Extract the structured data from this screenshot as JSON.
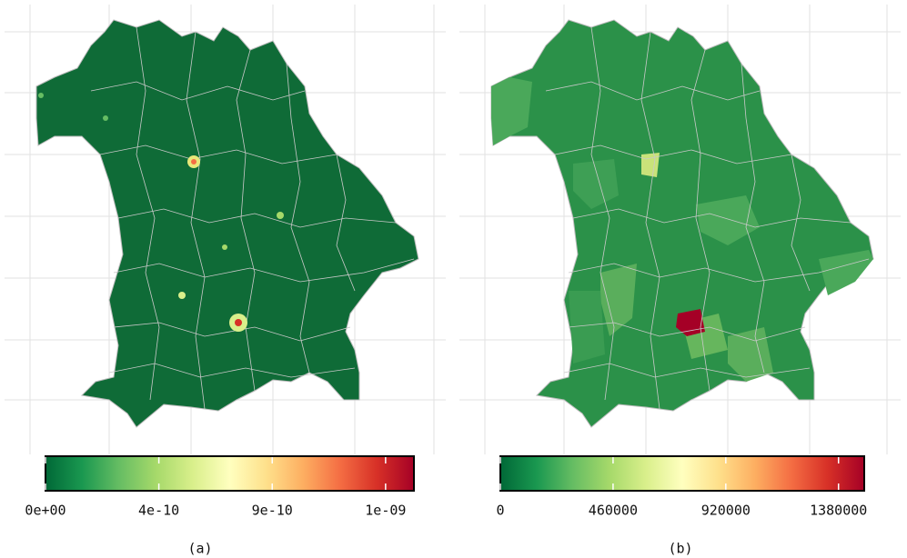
{
  "panels": [
    {
      "caption": "(a)",
      "colorbar": {
        "lim": [
          0,
          1.43e-09
        ],
        "ticks": [
          {
            "value": 0,
            "label": "0e+00"
          },
          {
            "value": 4.4e-10,
            "label": "4e-10"
          },
          {
            "value": 8.8e-10,
            "label": "9e-10"
          },
          {
            "value": 1.32e-09,
            "label": "1e-09"
          }
        ]
      }
    },
    {
      "caption": "(b)",
      "colorbar": {
        "lim": [
          0,
          1485000
        ],
        "ticks": [
          0,
          460000,
          920000,
          1380000
        ]
      }
    }
  ]
}
